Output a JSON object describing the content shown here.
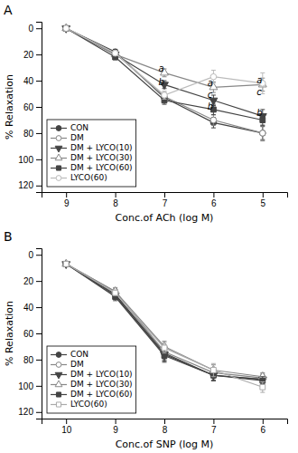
{
  "chart_data": [
    {
      "type": "line",
      "title": "A",
      "xlabel": "Conc.of ACh (log M)",
      "ylabel": "% Relaxation",
      "x": [
        9,
        8,
        7,
        6,
        5
      ],
      "xlim": [
        9.5,
        4.5
      ],
      "xticks": [
        9,
        8,
        7,
        6,
        5
      ],
      "ylim": [
        125,
        -5
      ],
      "yticks": [
        0,
        20,
        40,
        60,
        80,
        100,
        120
      ],
      "grid": false,
      "legend": "lower left",
      "series": [
        {
          "name": "CON",
          "color": "#444444",
          "marker": "circle",
          "values": [
            0,
            18,
            53,
            72,
            80
          ],
          "errors": [
            0.5,
            2,
            3,
            4,
            5
          ]
        },
        {
          "name": "DM",
          "color": "#888888",
          "marker": "circle-open",
          "values": [
            0,
            19,
            52,
            70,
            80
          ],
          "errors": [
            0.5,
            2,
            3,
            4,
            6
          ]
        },
        {
          "name": "DM + LYCO(10)",
          "color": "#444444",
          "marker": "triangle-down",
          "values": [
            0,
            20,
            43,
            55,
            67
          ],
          "errors": [
            0.5,
            2,
            3,
            4,
            5
          ]
        },
        {
          "name": "DM + LYCO(30)",
          "color": "#888888",
          "marker": "triangle-up-open",
          "values": [
            0,
            20,
            34,
            45,
            43
          ],
          "errors": [
            0.5,
            2,
            3,
            4,
            5
          ]
        },
        {
          "name": "DM + LYCO(60)",
          "color": "#444444",
          "marker": "square",
          "values": [
            0,
            22,
            55,
            62,
            70
          ],
          "errors": [
            0.5,
            2,
            3,
            4,
            4
          ]
        },
        {
          "name": "LYCO(60)",
          "color": "#bbbbbb",
          "marker": "circle-open",
          "values": [
            0,
            19,
            51,
            37,
            42
          ],
          "errors": [
            0.5,
            2,
            3,
            5,
            8
          ]
        }
      ],
      "annotations": [
        {
          "text": "a",
          "x": 7.12,
          "y": 31
        },
        {
          "text": "b",
          "x": 7.12,
          "y": 41
        },
        {
          "text": "a",
          "x": 6.12,
          "y": 42
        },
        {
          "text": "c",
          "x": 6.12,
          "y": 51
        },
        {
          "text": "b",
          "x": 6.12,
          "y": 60
        },
        {
          "text": "a",
          "x": 5.12,
          "y": 40
        },
        {
          "text": "c",
          "x": 5.12,
          "y": 49
        },
        {
          "text": "b",
          "x": 5.12,
          "y": 65
        }
      ]
    },
    {
      "type": "line",
      "title": "B",
      "xlabel": "Conc.of SNP (log M)",
      "ylabel": "% Relaxation",
      "x": [
        10,
        9,
        8,
        7,
        6
      ],
      "xlim": [
        10.5,
        5.5
      ],
      "xticks": [
        10,
        9,
        8,
        7,
        6
      ],
      "ylim": [
        125,
        -5
      ],
      "yticks": [
        0,
        20,
        40,
        60,
        80,
        100,
        120
      ],
      "grid": false,
      "legend": "lower left",
      "series": [
        {
          "name": "CON",
          "color": "#444444",
          "marker": "circle",
          "values": [
            7,
            30,
            75,
            92,
            95
          ],
          "errors": [
            1,
            3,
            5,
            4,
            3
          ]
        },
        {
          "name": "DM",
          "color": "#888888",
          "marker": "circle-open",
          "values": [
            7,
            28,
            74,
            90,
            94
          ],
          "errors": [
            1,
            3,
            5,
            4,
            3
          ]
        },
        {
          "name": "DM + LYCO(10)",
          "color": "#444444",
          "marker": "triangle-down",
          "values": [
            7,
            31,
            76,
            92,
            95
          ],
          "errors": [
            1,
            3,
            5,
            4,
            3
          ]
        },
        {
          "name": "DM + LYCO(30)",
          "color": "#888888",
          "marker": "triangle-up-open",
          "values": [
            7,
            28,
            70,
            88,
            93
          ],
          "errors": [
            1,
            2,
            4,
            4,
            3
          ]
        },
        {
          "name": "DM + LYCO(60)",
          "color": "#444444",
          "marker": "square",
          "values": [
            7,
            32,
            77,
            92,
            96
          ],
          "errors": [
            1,
            3,
            5,
            4,
            3
          ]
        },
        {
          "name": "LYCO(60)",
          "color": "#aaaaaa",
          "marker": "square-open",
          "values": [
            7,
            29,
            71,
            88,
            101
          ],
          "errors": [
            1,
            2,
            4,
            5,
            4
          ]
        }
      ]
    }
  ]
}
